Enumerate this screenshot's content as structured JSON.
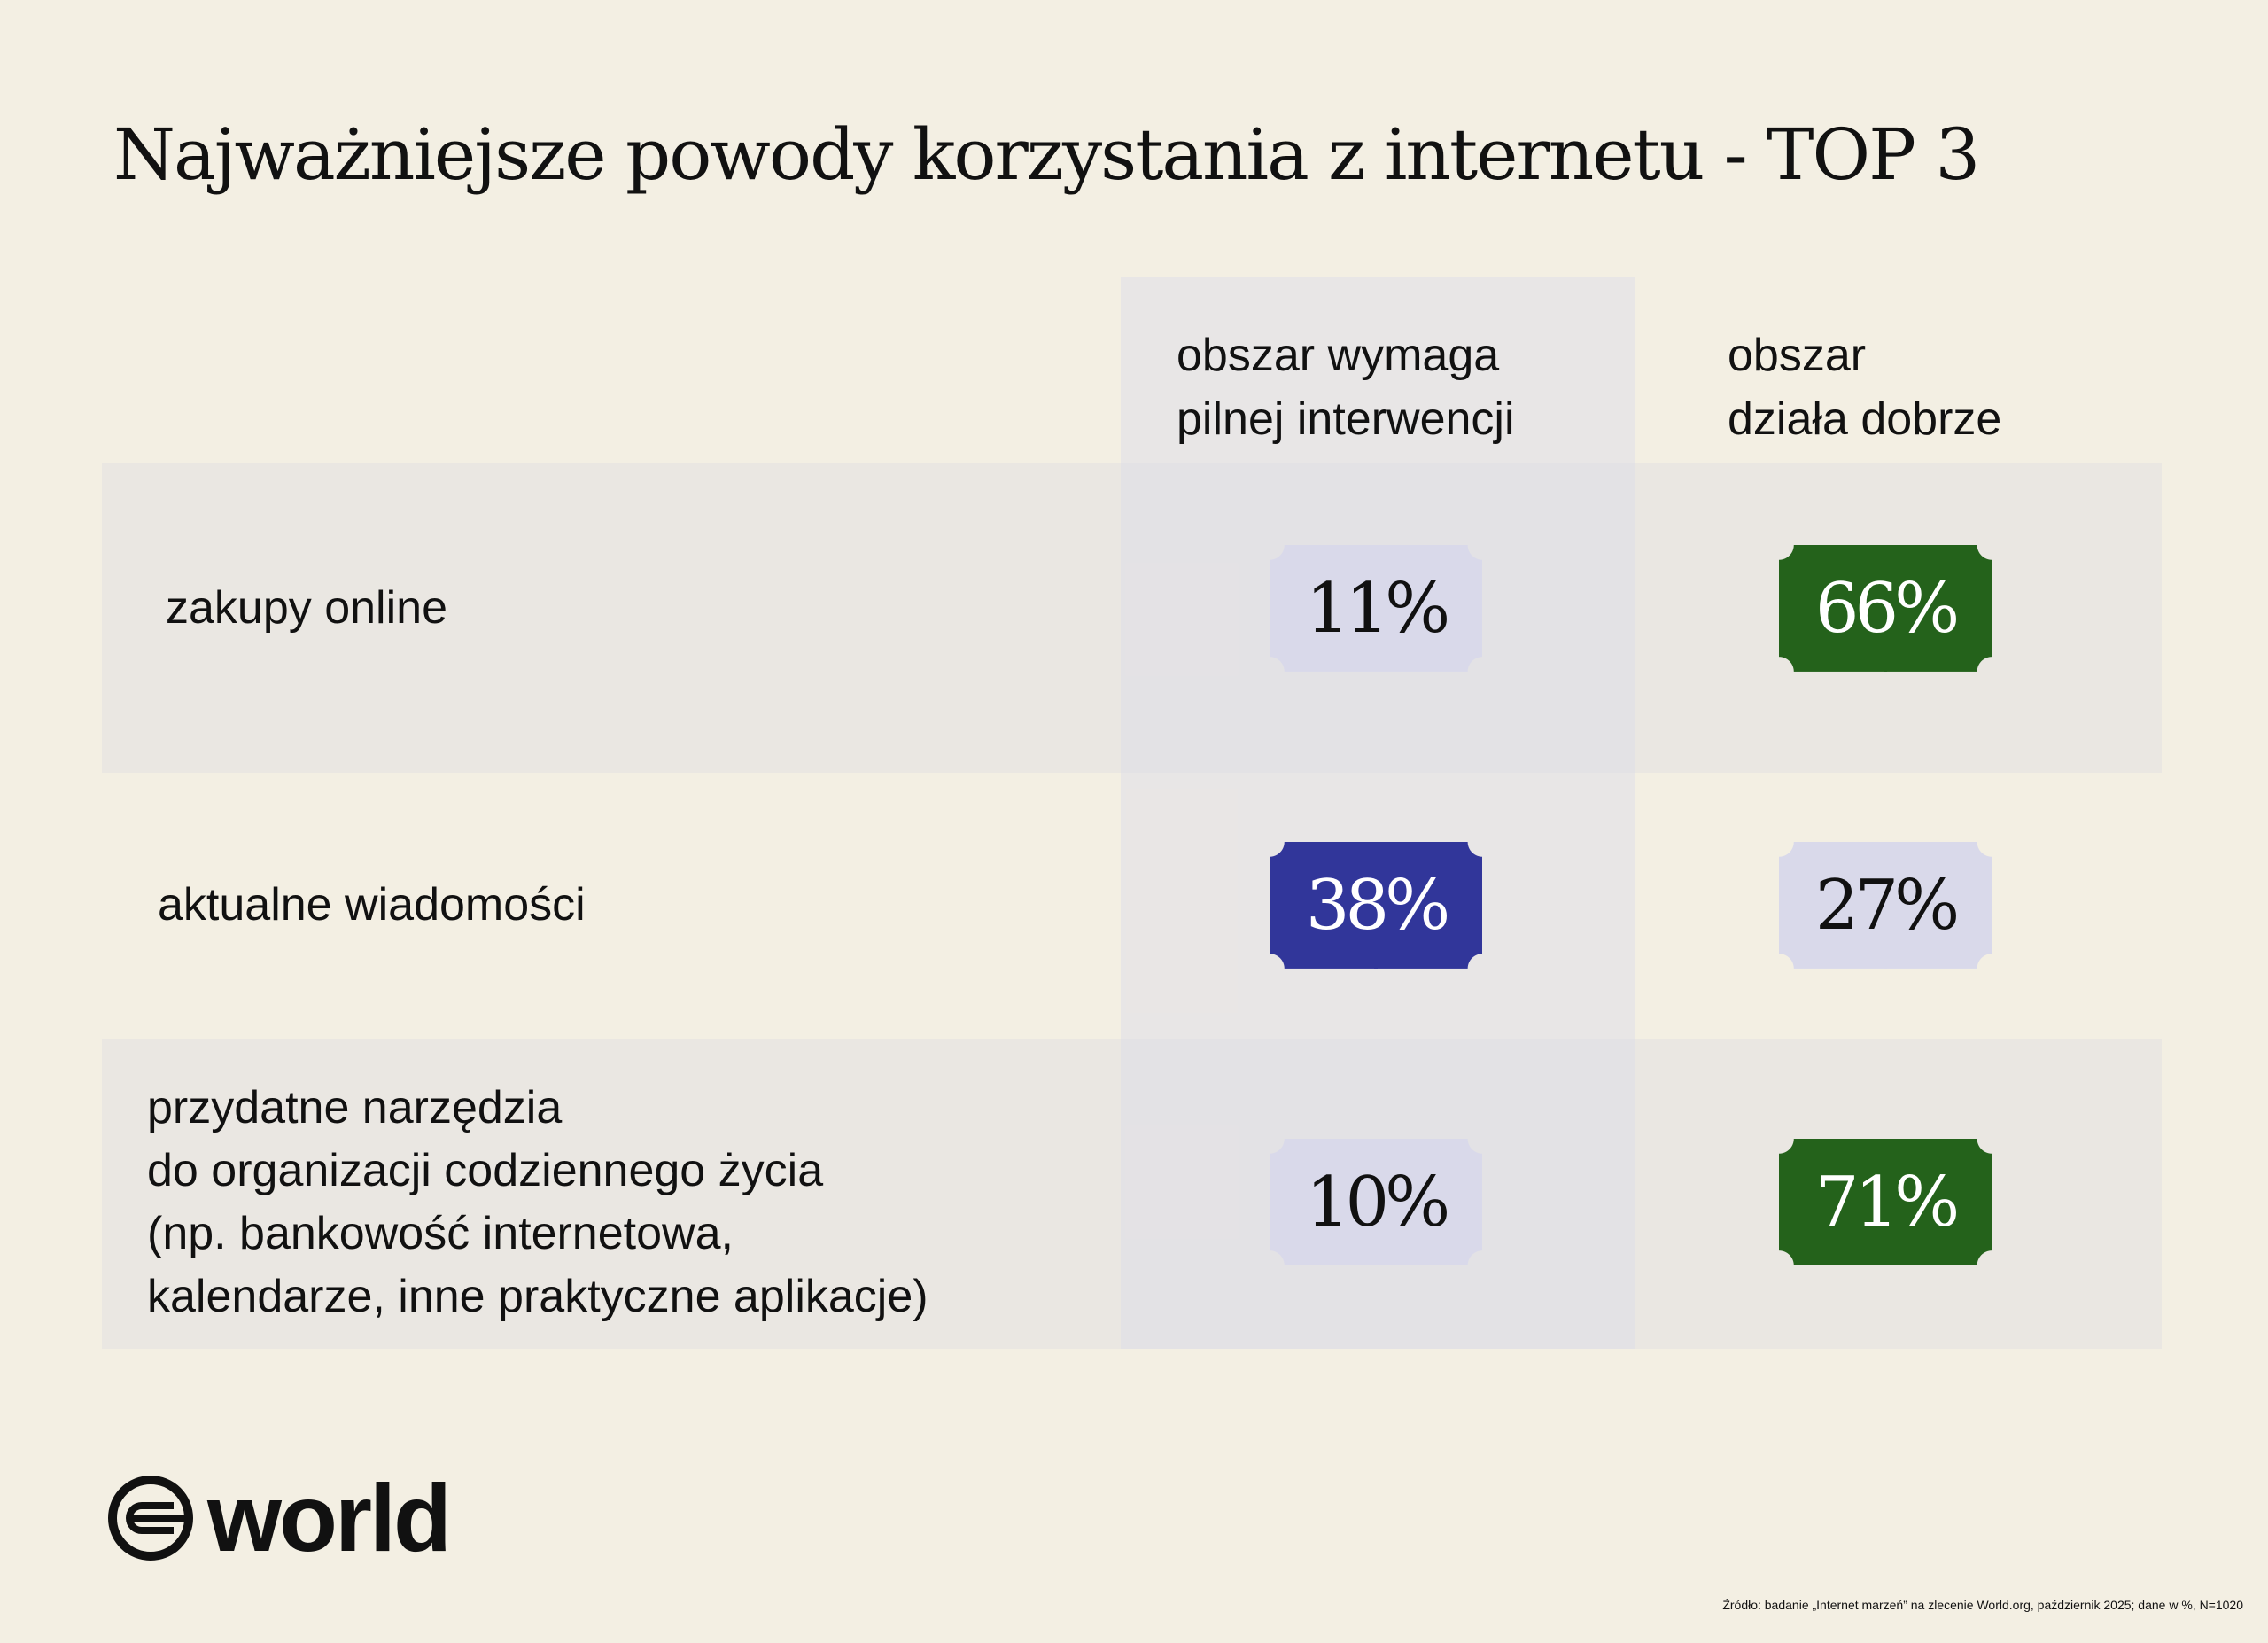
{
  "title": "Najważniejsze powody korzystania z internetu - TOP 3",
  "columns": [
    "obszar wymaga pilnej interwencji",
    "obszar działa dobrze"
  ],
  "column_lines": [
    [
      "obszar wymaga",
      "pilnej interwencji"
    ],
    [
      "obszar",
      "działa dobrze"
    ]
  ],
  "rows": [
    {
      "lines": [
        "zakupy online"
      ],
      "values": [
        "11%",
        "66%"
      ],
      "styles": [
        "light",
        "green"
      ]
    },
    {
      "lines": [
        "aktualne wiadomości"
      ],
      "values": [
        "38%",
        "27%"
      ],
      "styles": [
        "blue",
        "light"
      ]
    },
    {
      "lines": [
        "przydatne narzędzia",
        "do organizacji codziennego życia",
        "(np. bankowość internetowa,",
        "kalendarze, inne praktyczne aplikacje)"
      ],
      "values": [
        "10%",
        "71%"
      ],
      "styles": [
        "light",
        "green"
      ]
    }
  ],
  "colors": {
    "background": "#f3efe3",
    "light": "#d9d9ea",
    "blue": "#31369a",
    "green": "#24621b"
  },
  "logo": {
    "text": "world"
  },
  "source": "Źródło: badanie „Internet marzeń” na zlecenie World.org, październik 2025; dane w %, N=1020"
}
